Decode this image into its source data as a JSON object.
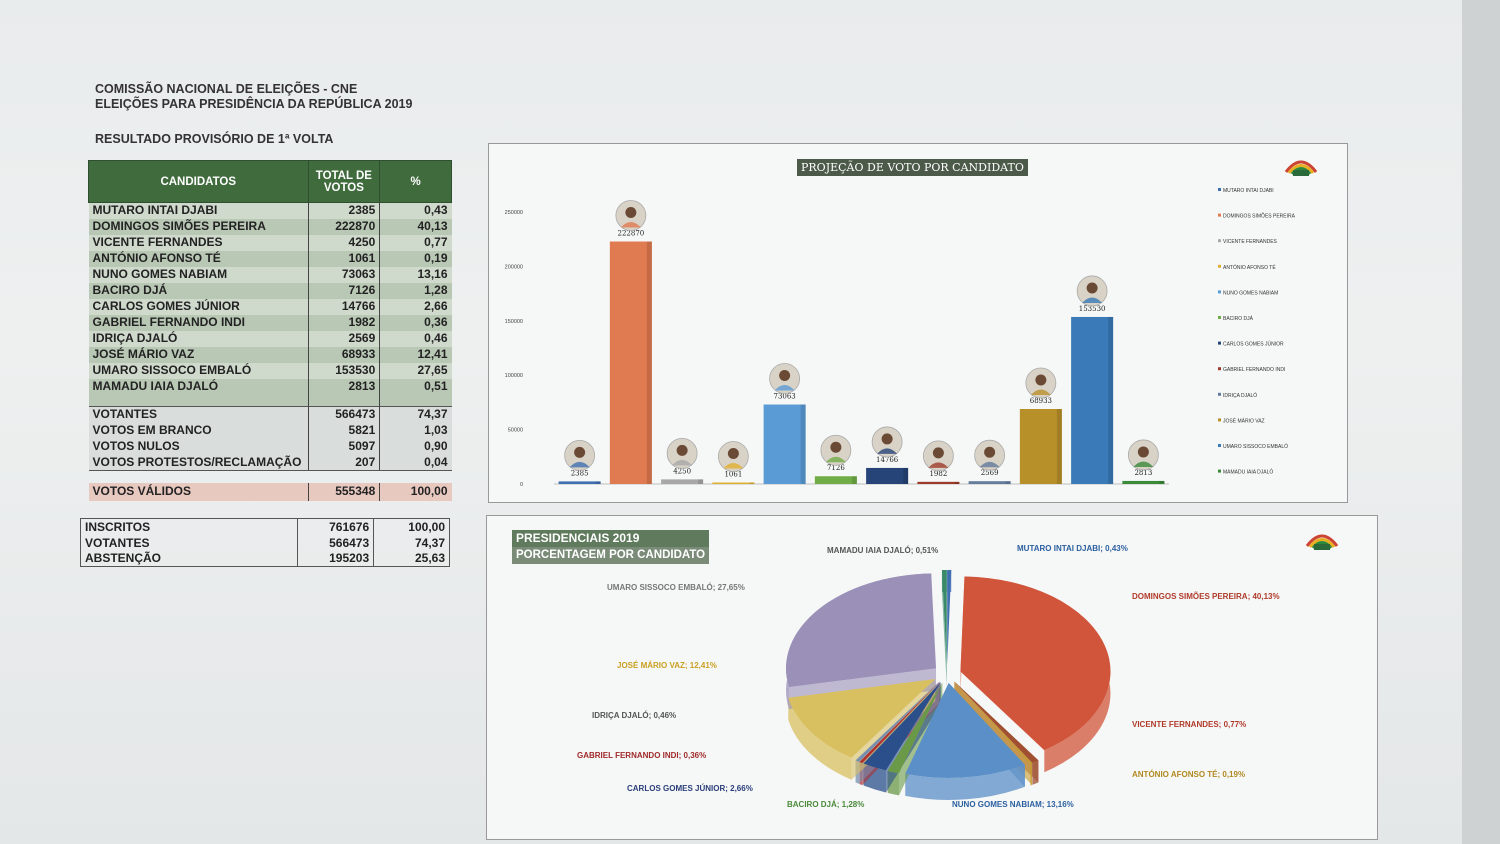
{
  "header": {
    "line1": "COMISSÃO NACIONAL DE ELEIÇÕES - CNE",
    "line2": "ELEIÇÕES PARA PRESIDÊNCIA DA REPÚBLICA 2019",
    "line3": "RESULTADO PROVISÓRIO DE 1ª VOLTA"
  },
  "table": {
    "col_candidates": "CANDIDATOS",
    "col_total": "TOTAL DE VOTOS",
    "col_pct": "%",
    "candidates": [
      {
        "name": "MUTARO INTAI DJABI",
        "votes": "2385",
        "pct": "0,43"
      },
      {
        "name": "DOMINGOS SIMÕES PEREIRA",
        "votes": "222870",
        "pct": "40,13"
      },
      {
        "name": "VICENTE FERNANDES",
        "votes": "4250",
        "pct": "0,77"
      },
      {
        "name": "ANTÓNIO AFONSO TÉ",
        "votes": "1061",
        "pct": "0,19"
      },
      {
        "name": "NUNO GOMES NABIAM",
        "votes": "73063",
        "pct": "13,16"
      },
      {
        "name": "BACIRO DJÁ",
        "votes": "7126",
        "pct": "1,28"
      },
      {
        "name": "CARLOS GOMES JÚNIOR",
        "votes": "14766",
        "pct": "2,66"
      },
      {
        "name": "GABRIEL FERNANDO INDI",
        "votes": "1982",
        "pct": "0,36"
      },
      {
        "name": "IDRIÇA DJALÓ",
        "votes": "2569",
        "pct": "0,46"
      },
      {
        "name": "JOSÉ MÁRIO VAZ",
        "votes": "68933",
        "pct": "12,41"
      },
      {
        "name": "UMARO SISSOCO EMBALÓ",
        "votes": "153530",
        "pct": "27,65"
      },
      {
        "name": "MAMADU IAIA DJALÓ",
        "votes": "2813",
        "pct": "0,51"
      }
    ],
    "totals": [
      {
        "name": "VOTANTES",
        "votes": "566473",
        "pct": "74,37"
      },
      {
        "name": "VOTOS EM BRANCO",
        "votes": "5821",
        "pct": "1,03"
      },
      {
        "name": "VOTOS NULOS",
        "votes": "5097",
        "pct": "0,90"
      },
      {
        "name": "VOTOS PROTESTOS/RECLAMAÇÃO",
        "votes": "207",
        "pct": "0,04"
      }
    ],
    "valid": {
      "name": "VOTOS VÁLIDOS",
      "votes": "555348",
      "pct": "100,00"
    }
  },
  "summary": [
    {
      "name": "INSCRITOS",
      "votes": "761676",
      "pct": "100,00"
    },
    {
      "name": "VOTANTES",
      "votes": "566473",
      "pct": "74,37"
    },
    {
      "name": "ABSTENÇÃO",
      "votes": "195203",
      "pct": "25,63"
    }
  ],
  "chart_data": [
    {
      "type": "bar",
      "title": "PROJEÇÃO DE VOTO POR CANDIDATO",
      "categories": [
        "MUTARO INTAI DJABI",
        "DOMINGOS SIMÕES PEREIRA",
        "VICENTE FERNANDES",
        "ANTÓNIO AFONSO TÉ",
        "NUNO GOMES NABIAM",
        "BACIRO DJÁ",
        "CARLOS GOMES JÚNIOR",
        "GABRIEL FERNANDO INDI",
        "IDRIÇA DJALÓ",
        "JOSÉ MÁRIO VAZ",
        "UMARO SISSOCO EMBALÓ",
        "MAMADU IAIA DJALÓ"
      ],
      "values": [
        2385,
        222870,
        4250,
        1061,
        73063,
        7126,
        14766,
        1982,
        2569,
        68933,
        153530,
        2813
      ],
      "colors": [
        "#3f6fb0",
        "#e07a50",
        "#a8a8a8",
        "#e0b030",
        "#5b9bd5",
        "#70ad47",
        "#264478",
        "#9e3b2b",
        "#637c9c",
        "#b8902a",
        "#3a7ab8",
        "#3a8a3a"
      ],
      "yticks": [
        "0",
        "50000",
        "100000",
        "150000",
        "200000",
        "250000"
      ],
      "ylim": [
        0,
        250000
      ],
      "legend": "right"
    },
    {
      "type": "pie",
      "title": "PRESIDENCIAIS 2019",
      "subtitle": "PORCENTAGEM POR CANDIDATO",
      "slices": [
        {
          "label": "MUTARO INTAI DJABI; 0,43%",
          "value": 0.43,
          "color": "#3f6fb0"
        },
        {
          "label": "DOMINGOS SIMÕES PEREIRA; 40,13%",
          "value": 40.13,
          "color": "#d0553a"
        },
        {
          "label": "VICENTE FERNANDES; 0,77%",
          "value": 0.77,
          "color": "#a05030"
        },
        {
          "label": "ANTÓNIO AFONSO TÉ; 0,19%",
          "value": 0.19,
          "color": "#c79a2a"
        },
        {
          "label": "NUNO GOMES NABIAM; 13,16%",
          "value": 13.16,
          "color": "#5b8fc7"
        },
        {
          "label": "BACIRO DJÁ; 1,28%",
          "value": 1.28,
          "color": "#6a9a48"
        },
        {
          "label": "CARLOS GOMES JÚNIOR; 2,66%",
          "value": 2.66,
          "color": "#2a4f8a"
        },
        {
          "label": "GABRIEL FERNANDO INDI; 0,36%",
          "value": 0.36,
          "color": "#b03030"
        },
        {
          "label": "IDRIÇA DJALÓ; 0,46%",
          "value": 0.46,
          "color": "#7890b0"
        },
        {
          "label": "JOSÉ MÁRIO VAZ; 12,41%",
          "value": 12.41,
          "color": "#d8c060"
        },
        {
          "label": "UMARO SISSOCO EMBALÓ; 27,65%",
          "value": 27.65,
          "color": "#9a90b8"
        },
        {
          "label": "MAMADU IAIA DJALÓ; 0,51%",
          "value": 0.51,
          "color": "#3a8a6a"
        }
      ]
    }
  ]
}
